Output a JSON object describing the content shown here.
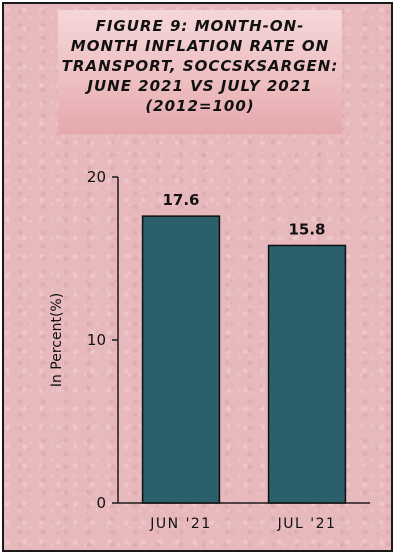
{
  "chart_data": {
    "type": "bar",
    "title": "FIGURE 9: MONTH-ON-\nMONTH INFLATION RATE ON\nTRANSPORT, SOCCSKSARGEN:\nJUNE 2021 VS JULY 2021\n(2012=100)",
    "categories": [
      "JUN '21",
      "JUL '21"
    ],
    "values": [
      17.6,
      15.8
    ],
    "value_labels": [
      "17.6",
      "15.8"
    ],
    "xlabel": "",
    "ylabel": "In Percent(%)",
    "ylim": [
      0,
      20
    ],
    "yticks": [
      0,
      10,
      20
    ],
    "grid": false,
    "legend": "none",
    "bar_color": "#2a5f6b",
    "background_color": "#e8b9bc"
  }
}
